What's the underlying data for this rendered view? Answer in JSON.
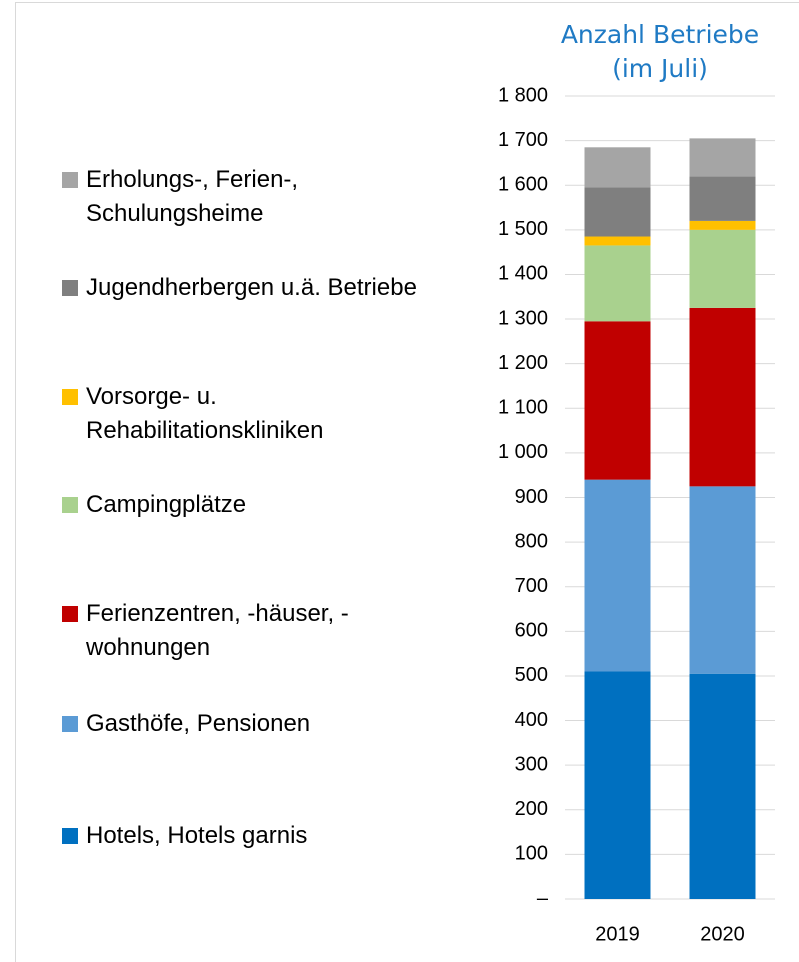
{
  "chart_data": {
    "type": "stacked_bar",
    "title": "Anzahl Betriebe (im Juli)",
    "categories": [
      "2019",
      "2020"
    ],
    "series": [
      {
        "name": "Hotels, Hotels garnis",
        "color": "#0070c0",
        "values": [
          510,
          505
        ]
      },
      {
        "name": "Gasthöfe, Pensionen",
        "color": "#5b9bd5",
        "values": [
          430,
          420
        ]
      },
      {
        "name": "Ferienzentren, -häuser, -wohnungen",
        "color": "#c00000",
        "values": [
          355,
          400
        ]
      },
      {
        "name": "Campingplätze",
        "color": "#a9d18e",
        "values": [
          170,
          175
        ]
      },
      {
        "name": "Vorsorge- u. Rehabilitationskliniken",
        "color": "#ffc000",
        "values": [
          20,
          20
        ]
      },
      {
        "name": "Jugendherbergen u.ä. Betriebe",
        "color": "#7f7f7f",
        "values": [
          110,
          100
        ]
      },
      {
        "name": "Erholungs-, Ferien-, Schulungsheime",
        "color": "#a5a5a5",
        "values": [
          90,
          85
        ]
      }
    ],
    "ylim": [
      0,
      1800
    ],
    "yticks": [
      {
        "value": 0,
        "label": "–"
      },
      100,
      200,
      300,
      400,
      500,
      600,
      700,
      800,
      900,
      {
        "value": 1000,
        "label": "1 000"
      },
      {
        "value": 1100,
        "label": "1 100"
      },
      {
        "value": 1200,
        "label": "1 200"
      },
      {
        "value": 1300,
        "label": "1 300"
      },
      {
        "value": 1400,
        "label": "1 400"
      },
      {
        "value": 1500,
        "label": "1 500"
      },
      {
        "value": 1600,
        "label": "1 600"
      },
      {
        "value": 1700,
        "label": "1 700"
      },
      {
        "value": 1800,
        "label": "1 800"
      }
    ],
    "grid": true
  }
}
